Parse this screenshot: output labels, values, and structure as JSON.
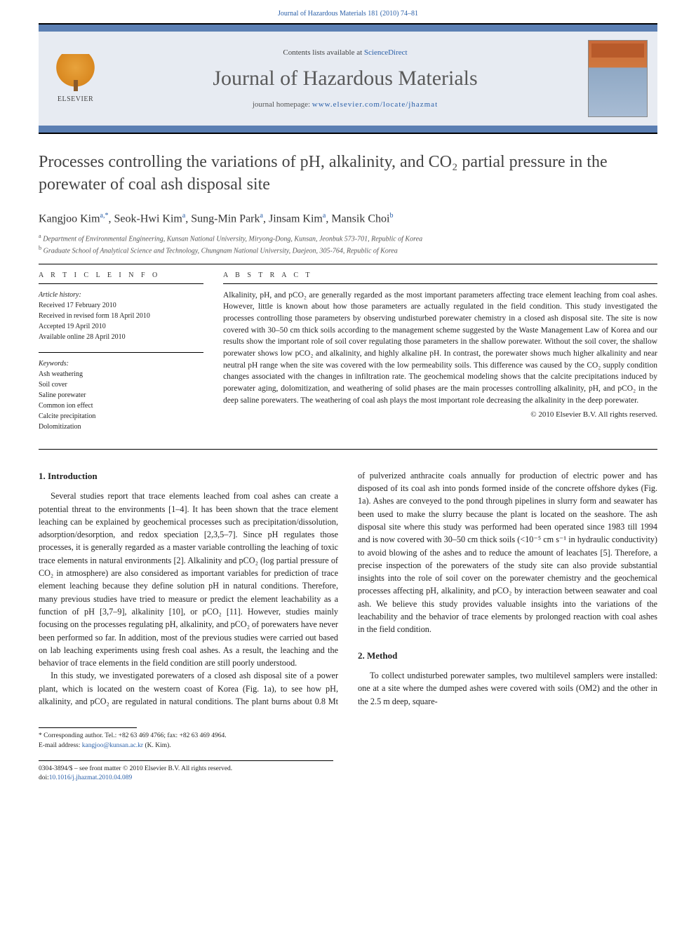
{
  "journal": {
    "running_head": "Journal of Hazardous Materials 181 (2010) 74–81",
    "contents_line_prefix": "Contents lists available at ",
    "contents_link": "ScienceDirect",
    "name": "Journal of Hazardous Materials",
    "homepage_label": "journal homepage: ",
    "homepage_url": "www.elsevier.com/locate/jhazmat",
    "publisher": "ELSEVIER"
  },
  "article": {
    "title": "Processes controlling the variations of pH, alkalinity, and CO₂ partial pressure in the porewater of coal ash disposal site",
    "authors_html": "Kangjoo Kim",
    "authors": [
      {
        "name": "Kangjoo Kim",
        "affil": "a,",
        "corr": "*"
      },
      {
        "name": "Seok-Hwi Kim",
        "affil": "a"
      },
      {
        "name": "Sung-Min Park",
        "affil": "a"
      },
      {
        "name": "Jinsam Kim",
        "affil": "a"
      },
      {
        "name": "Mansik Choi",
        "affil": "b"
      }
    ],
    "affiliations": [
      {
        "key": "a",
        "text": "Department of Environmental Engineering, Kunsan National University, Miryong-Dong, Kunsan, Jeonbuk 573-701, Republic of Korea"
      },
      {
        "key": "b",
        "text": "Graduate School of Analytical Science and Technology, Chungnam National University, Daejeon, 305-764, Republic of Korea"
      }
    ]
  },
  "meta": {
    "info_heading": "A R T I C L E   I N F O",
    "history_label": "Article history:",
    "history": [
      "Received 17 February 2010",
      "Received in revised form 18 April 2010",
      "Accepted 19 April 2010",
      "Available online 28 April 2010"
    ],
    "keywords_label": "Keywords:",
    "keywords": [
      "Ash weathering",
      "Soil cover",
      "Saline porewater",
      "Common ion effect",
      "Calcite precipitation",
      "Dolomitization"
    ]
  },
  "abstract": {
    "heading": "A B S T R A C T",
    "text": "Alkalinity, pH, and pCO₂ are generally regarded as the most important parameters affecting trace element leaching from coal ashes. However, little is known about how those parameters are actually regulated in the field condition. This study investigated the processes controlling those parameters by observing undisturbed porewater chemistry in a closed ash disposal site. The site is now covered with 30–50 cm thick soils according to the management scheme suggested by the Waste Management Law of Korea and our results show the important role of soil cover regulating those parameters in the shallow porewater. Without the soil cover, the shallow porewater shows low pCO₂ and alkalinity, and highly alkaline pH. In contrast, the porewater shows much higher alkalinity and near neutral pH range when the site was covered with the low permeability soils. This difference was caused by the CO₂ supply condition changes associated with the changes in infiltration rate. The geochemical modeling shows that the calcite precipitations induced by porewater aging, dolomitization, and weathering of solid phases are the main processes controlling alkalinity, pH, and pCO₂ in the deep saline porewaters. The weathering of coal ash plays the most important role decreasing the alkalinity in the deep porewater.",
    "copyright": "© 2010 Elsevier B.V. All rights reserved."
  },
  "sections": {
    "intro_heading": "1. Introduction",
    "intro_p1": "Several studies report that trace elements leached from coal ashes can create a potential threat to the environments [1–4]. It has been shown that the trace element leaching can be explained by geochemical processes such as precipitation/dissolution, adsorption/desorption, and redox speciation [2,3,5–7]. Since pH regulates those processes, it is generally regarded as a master variable controlling the leaching of toxic trace elements in natural environments [2]. Alkalinity and pCO₂ (log partial pressure of CO₂ in atmosphere) are also considered as important variables for prediction of trace element leaching because they define solution pH in natural conditions. Therefore, many previous studies have tried to measure or predict the element leachability as a function of pH [3,7–9], alkalinity [10], or pCO₂ [11]. However, studies mainly focusing on the processes regulating pH, alkalinity, and pCO₂ of porewaters have never been performed so far. In addition, most of the previous studies were carried out based on lab leaching experiments using fresh coal ashes. As a result, the leaching and the behavior of trace elements in the field condition are still poorly understood.",
    "intro_p2": "In this study, we investigated porewaters of a closed ash disposal site of a power plant, which is located on the western coast of Korea (Fig. 1a), to see how pH, alkalinity, and pCO₂ are regulated in natural conditions. The plant burns about 0.8 Mt of pulverized anthracite coals annually for production of electric power and has disposed of its coal ash into ponds formed inside of the concrete offshore dykes (Fig. 1a). Ashes are conveyed to the pond through pipelines in slurry form and seawater has been used to make the slurry because the plant is located on the seashore. The ash disposal site where this study was performed had been operated since 1983 till 1994 and is now covered with 30–50 cm thick soils (<10⁻⁵ cm s⁻¹ in hydraulic conductivity) to avoid blowing of the ashes and to reduce the amount of leachates [5]. Therefore, a precise inspection of the porewaters of the study site can also provide substantial insights into the role of soil cover on the porewater chemistry and the geochemical processes affecting pH, alkalinity, and pCO₂ by interaction between seawater and coal ash. We believe this study provides valuable insights into the variations of the leachability and the behavior of trace elements by prolonged reaction with coal ashes in the field condition.",
    "method_heading": "2. Method",
    "method_p1": "To collect undisturbed porewater samples, two multilevel samplers were installed: one at a site where the dumped ashes were covered with soils (OM2) and the other in the 2.5 m deep, square-"
  },
  "footnote": {
    "corr_label": "* Corresponding author. Tel.: +82 63 469 4766; fax: +82 63 469 4964.",
    "email_label": "E-mail address: ",
    "email": "kangjoo@kunsan.ac.kr",
    "email_suffix": " (K. Kim)."
  },
  "bottom": {
    "issn_line": "0304-3894/$ – see front matter © 2010 Elsevier B.V. All rights reserved.",
    "doi_label": "doi:",
    "doi": "10.1016/j.jhazmat.2010.04.089"
  },
  "colors": {
    "link": "#2a5fa8",
    "banner_bg": "#e7ebf2",
    "banner_border": "#5b7fb3"
  }
}
